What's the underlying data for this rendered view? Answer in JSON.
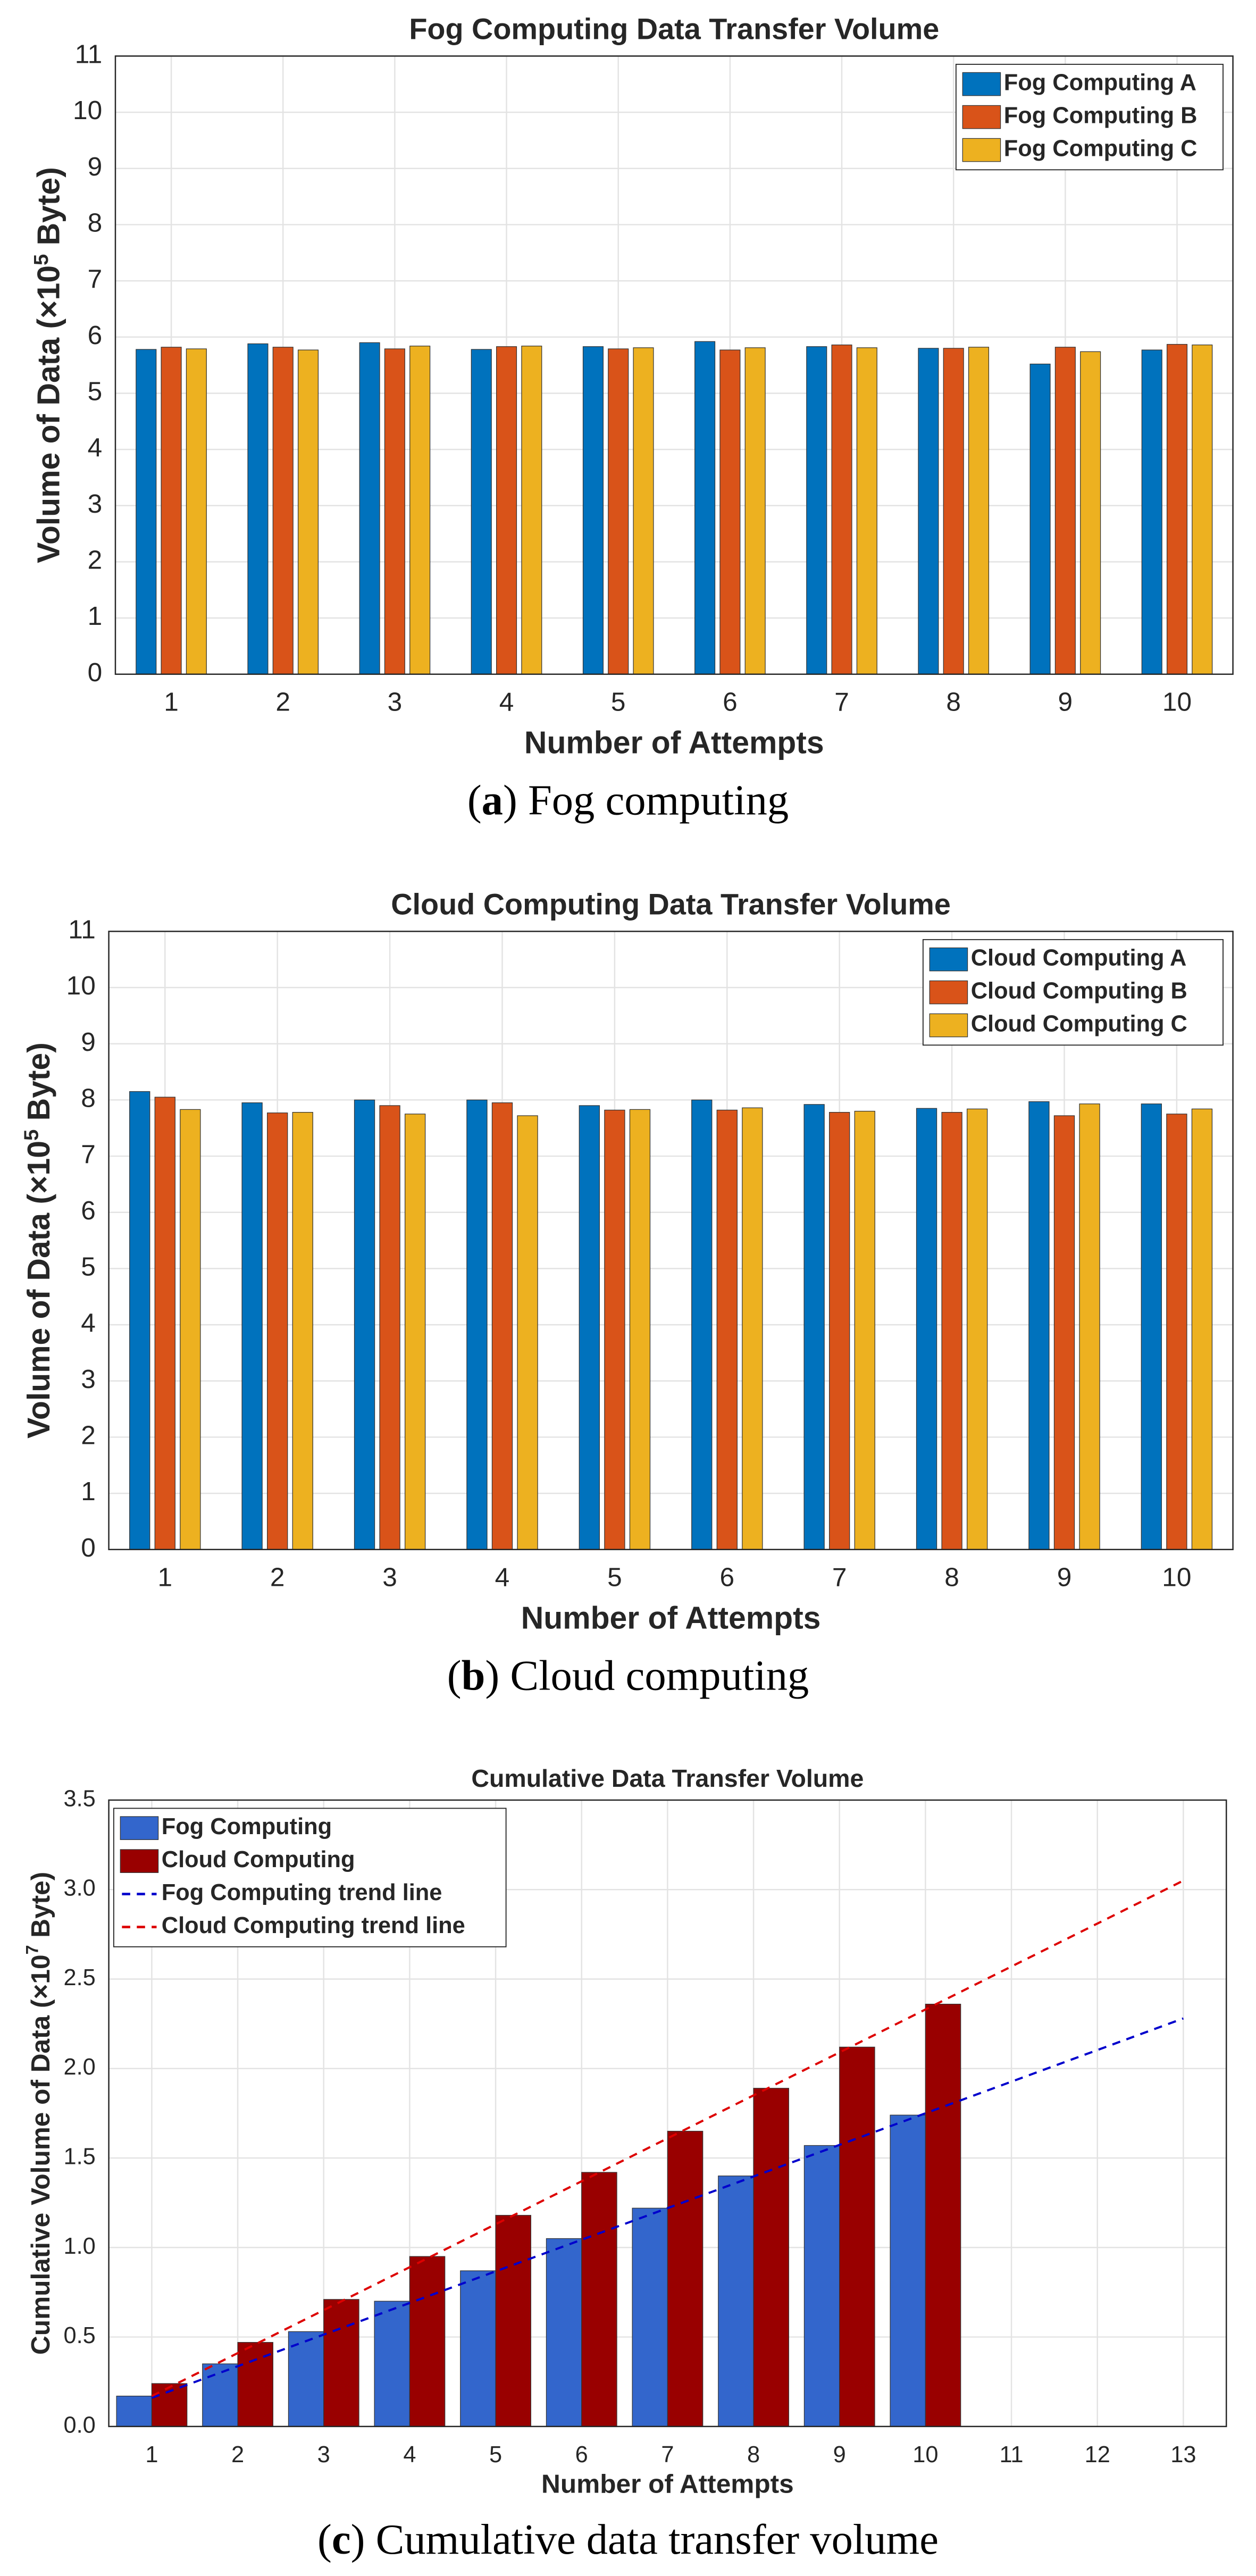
{
  "chart_data": [
    {
      "type": "bar",
      "title": "Fog Computing Data Transfer Volume",
      "xlabel": "Number of Attempts",
      "ylabel": [
        "Volume of Data (×10",
        "5",
        " Byte)"
      ],
      "categories": [
        1,
        2,
        3,
        4,
        5,
        6,
        7,
        8,
        9,
        10
      ],
      "series": [
        {
          "name": "Fog Computing A",
          "color": "#0072bd",
          "values": [
            5.78,
            5.88,
            5.9,
            5.78,
            5.83,
            5.92,
            5.83,
            5.8,
            5.52,
            5.77
          ]
        },
        {
          "name": "Fog Computing B",
          "color": "#d95319",
          "values": [
            5.82,
            5.82,
            5.79,
            5.83,
            5.79,
            5.77,
            5.86,
            5.8,
            5.82,
            5.87
          ]
        },
        {
          "name": "Fog Computing C",
          "color": "#edb120",
          "values": [
            5.79,
            5.77,
            5.84,
            5.84,
            5.81,
            5.81,
            5.81,
            5.82,
            5.74,
            5.86
          ]
        }
      ],
      "ylim": [
        0,
        11
      ],
      "yticks": [
        0,
        1,
        2,
        3,
        4,
        5,
        6,
        7,
        8,
        9,
        10,
        11
      ],
      "grid": true,
      "legend": "upper right",
      "caption": [
        "(",
        "a",
        ") Fog computing"
      ]
    },
    {
      "type": "bar",
      "title": "Cloud Computing Data Transfer Volume",
      "xlabel": "Number of Attempts",
      "ylabel": [
        "Volume of Data (×10",
        "5",
        " Byte)"
      ],
      "categories": [
        1,
        2,
        3,
        4,
        5,
        6,
        7,
        8,
        9,
        10
      ],
      "series": [
        {
          "name": "Cloud Computing A",
          "color": "#0072bd",
          "values": [
            8.15,
            7.95,
            8.0,
            8.0,
            7.9,
            8.0,
            7.92,
            7.85,
            7.97,
            7.93
          ]
        },
        {
          "name": "Cloud Computing B",
          "color": "#d95319",
          "values": [
            8.05,
            7.77,
            7.9,
            7.95,
            7.82,
            7.82,
            7.78,
            7.78,
            7.72,
            7.75
          ]
        },
        {
          "name": "Cloud Computing C",
          "color": "#edb120",
          "values": [
            7.83,
            7.78,
            7.75,
            7.72,
            7.83,
            7.86,
            7.8,
            7.84,
            7.93,
            7.84
          ]
        }
      ],
      "ylim": [
        0,
        11
      ],
      "yticks": [
        0,
        1,
        2,
        3,
        4,
        5,
        6,
        7,
        8,
        9,
        10,
        11
      ],
      "grid": true,
      "legend": "upper right",
      "caption": [
        "(",
        "b",
        ") Cloud computing"
      ]
    },
    {
      "type": "bar",
      "title": "Cumulative Data Transfer Volume",
      "xlabel": "Number of Attempts",
      "ylabel": [
        "Cumulative Volume of Data (×10",
        "7",
        " Byte)"
      ],
      "categories": [
        1,
        2,
        3,
        4,
        5,
        6,
        7,
        8,
        9,
        10,
        11,
        12,
        13
      ],
      "series": [
        {
          "name": "Fog Computing",
          "type": "bar",
          "color": "#3366cc",
          "values": [
            0.17,
            0.35,
            0.53,
            0.7,
            0.87,
            1.05,
            1.22,
            1.4,
            1.57,
            1.74,
            null,
            null,
            null
          ]
        },
        {
          "name": "Cloud Computing",
          "type": "bar",
          "color": "#990000",
          "values": [
            0.24,
            0.47,
            0.71,
            0.95,
            1.18,
            1.42,
            1.65,
            1.89,
            2.12,
            2.36,
            null,
            null,
            null
          ]
        },
        {
          "name": "Fog Computing trend line",
          "type": "line",
          "dashed": true,
          "color": "#0000cc",
          "x": [
            1,
            13
          ],
          "values": [
            0.16,
            2.28
          ]
        },
        {
          "name": "Cloud Computing trend line",
          "type": "line",
          "dashed": true,
          "color": "#dd0000",
          "x": [
            1,
            13
          ],
          "values": [
            0.17,
            3.05
          ]
        }
      ],
      "ylim": [
        0,
        3.5
      ],
      "yticks": [
        {
          "value": 0,
          "label": "0.0"
        },
        {
          "value": 0.5,
          "label": "0.5"
        },
        {
          "value": 1,
          "label": "1.0"
        },
        {
          "value": 1.5,
          "label": "1.5"
        },
        {
          "value": 2,
          "label": "2.0"
        },
        {
          "value": 2.5,
          "label": "2.5"
        },
        {
          "value": 3,
          "label": "3.0"
        },
        {
          "value": 3.5,
          "label": "3.5"
        }
      ],
      "grid": true,
      "legend": "upper left",
      "caption": [
        "(",
        "c",
        ") Cumulative data transfer volume"
      ]
    }
  ]
}
